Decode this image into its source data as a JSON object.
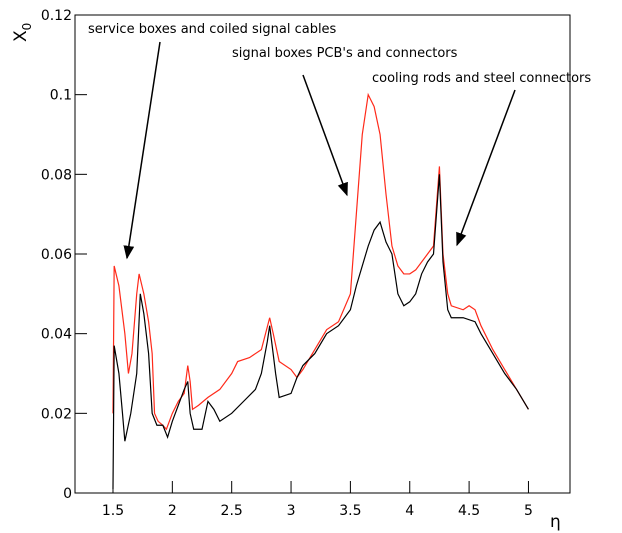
{
  "chart_data": {
    "type": "line",
    "xlabel": "η",
    "ylabel": {
      "text": "X",
      "subscript": "0"
    },
    "xlim": [
      1.18,
      5.35
    ],
    "ylim": [
      0,
      0.12
    ],
    "xticks": [
      1.5,
      2,
      2.5,
      3,
      3.5,
      4,
      4.5,
      5
    ],
    "yticks": [
      0,
      0.02,
      0.04,
      0.06,
      0.08,
      0.1,
      0.12
    ],
    "annotations": [
      "service boxes and coiled signal cables",
      "signal boxes PCB's and connectors",
      "cooling rods and steel connectors"
    ],
    "series": [
      {
        "color": "#ff2a1a",
        "x": [
          1.5,
          1.51,
          1.55,
          1.6,
          1.63,
          1.66,
          1.7,
          1.72,
          1.76,
          1.8,
          1.83,
          1.85,
          1.88,
          1.92,
          1.95,
          2.0,
          2.05,
          2.1,
          2.13,
          2.15,
          2.17,
          2.22,
          2.3,
          2.4,
          2.5,
          2.55,
          2.65,
          2.75,
          2.82,
          2.85,
          2.9,
          3.0,
          3.05,
          3.1,
          3.2,
          3.3,
          3.4,
          3.5,
          3.55,
          3.6,
          3.65,
          3.7,
          3.75,
          3.8,
          3.85,
          3.9,
          3.95,
          4.0,
          4.05,
          4.1,
          4.15,
          4.2,
          4.25,
          4.28,
          4.32,
          4.35,
          4.45,
          4.5,
          4.55,
          4.6,
          4.7,
          4.8,
          4.9,
          5.0
        ],
        "values": [
          0.02,
          0.057,
          0.052,
          0.04,
          0.03,
          0.035,
          0.05,
          0.055,
          0.05,
          0.043,
          0.035,
          0.02,
          0.018,
          0.017,
          0.016,
          0.02,
          0.023,
          0.025,
          0.032,
          0.028,
          0.021,
          0.022,
          0.024,
          0.026,
          0.03,
          0.033,
          0.034,
          0.036,
          0.044,
          0.04,
          0.033,
          0.031,
          0.029,
          0.031,
          0.036,
          0.041,
          0.043,
          0.05,
          0.07,
          0.09,
          0.1,
          0.097,
          0.09,
          0.075,
          0.062,
          0.057,
          0.055,
          0.055,
          0.056,
          0.058,
          0.06,
          0.062,
          0.082,
          0.06,
          0.05,
          0.047,
          0.046,
          0.047,
          0.046,
          0.042,
          0.036,
          0.031,
          0.026,
          0.021
        ]
      },
      {
        "color": "#000000",
        "x": [
          1.5,
          1.51,
          1.55,
          1.58,
          1.6,
          1.65,
          1.7,
          1.73,
          1.76,
          1.8,
          1.83,
          1.87,
          1.92,
          1.96,
          2.0,
          2.05,
          2.1,
          2.13,
          2.15,
          2.18,
          2.25,
          2.3,
          2.35,
          2.4,
          2.5,
          2.6,
          2.7,
          2.75,
          2.8,
          2.82,
          2.87,
          2.9,
          3.0,
          3.05,
          3.1,
          3.2,
          3.3,
          3.4,
          3.5,
          3.55,
          3.6,
          3.65,
          3.7,
          3.75,
          3.8,
          3.85,
          3.9,
          3.95,
          4.0,
          4.05,
          4.1,
          4.15,
          4.2,
          4.25,
          4.28,
          4.32,
          4.35,
          4.45,
          4.55,
          4.6,
          4.7,
          4.8,
          4.9,
          5.0
        ],
        "values": [
          0.001,
          0.037,
          0.03,
          0.02,
          0.013,
          0.02,
          0.03,
          0.05,
          0.045,
          0.035,
          0.02,
          0.017,
          0.017,
          0.014,
          0.018,
          0.022,
          0.026,
          0.028,
          0.02,
          0.016,
          0.016,
          0.023,
          0.021,
          0.018,
          0.02,
          0.023,
          0.026,
          0.03,
          0.038,
          0.042,
          0.03,
          0.024,
          0.025,
          0.029,
          0.032,
          0.035,
          0.04,
          0.042,
          0.046,
          0.052,
          0.057,
          0.062,
          0.066,
          0.068,
          0.063,
          0.06,
          0.05,
          0.047,
          0.048,
          0.05,
          0.055,
          0.058,
          0.06,
          0.08,
          0.058,
          0.046,
          0.044,
          0.044,
          0.043,
          0.04,
          0.035,
          0.03,
          0.026,
          0.021
        ]
      }
    ]
  }
}
